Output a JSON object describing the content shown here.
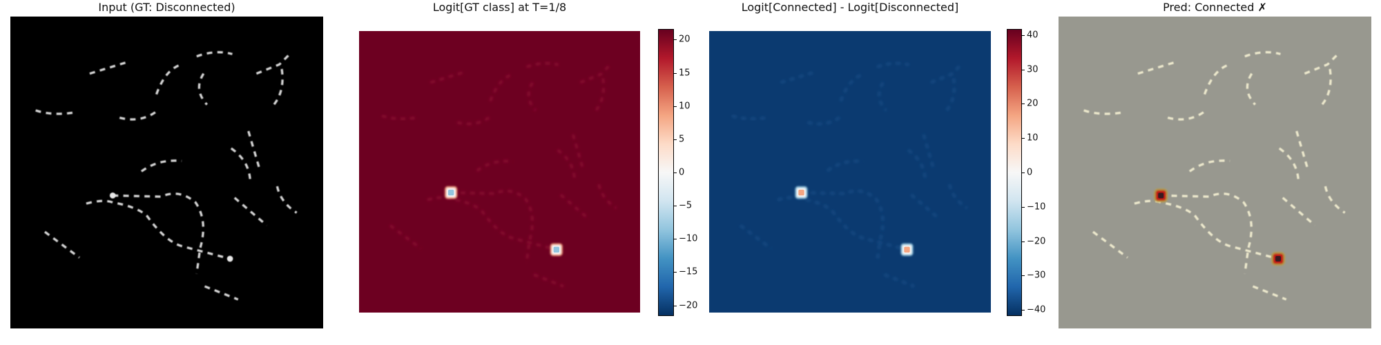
{
  "panels": [
    {
      "title": "Input (GT: Disconnected)"
    },
    {
      "title": "Logit[GT class] at T=1/8"
    },
    {
      "title": "Logit[Connected] - Logit[Disconnected]"
    },
    {
      "title": "Pred: Connected ✗"
    }
  ],
  "chart_data": [
    {
      "type": "heatmap",
      "title": "Input (GT: Disconnected)",
      "content": "grayscale image of dashed curves with two endpoint markers",
      "colormap": "gray"
    },
    {
      "type": "heatmap",
      "title": "Logit[GT class] at T=1/8",
      "colormap": "RdBu_r",
      "vlim": [
        -21.5,
        21.5
      ],
      "colorbar_ticks": [
        "20",
        "15",
        "10",
        "5",
        "0",
        "−5",
        "−10",
        "−15",
        "−20"
      ],
      "colorbar_tick_values": [
        20,
        15,
        10,
        5,
        0,
        -5,
        -10,
        -15,
        -20
      ],
      "background_value": 21.5,
      "hotspots": "two low-value (blue) spots at the two endpoint markers"
    },
    {
      "type": "heatmap",
      "title": "Logit[Connected] - Logit[Disconnected]",
      "colormap": "RdBu_r",
      "vlim": [
        -41.6,
        41.6
      ],
      "colorbar_ticks": [
        "40",
        "30",
        "20",
        "10",
        "0",
        "−10",
        "−20",
        "−30",
        "−40"
      ],
      "colorbar_tick_values": [
        40,
        30,
        20,
        10,
        0,
        -10,
        -20,
        -30,
        -40
      ],
      "background_value": -41.6,
      "hotspots": "two high-value spots at the two endpoint markers"
    },
    {
      "type": "heatmap",
      "title": "Pred: Connected ✗",
      "content": "overlay of input and attribution"
    }
  ],
  "colors": {
    "rdbu_max": "#67001f",
    "rdbu_min": "#053061",
    "overlay_bg": "#98988f"
  }
}
